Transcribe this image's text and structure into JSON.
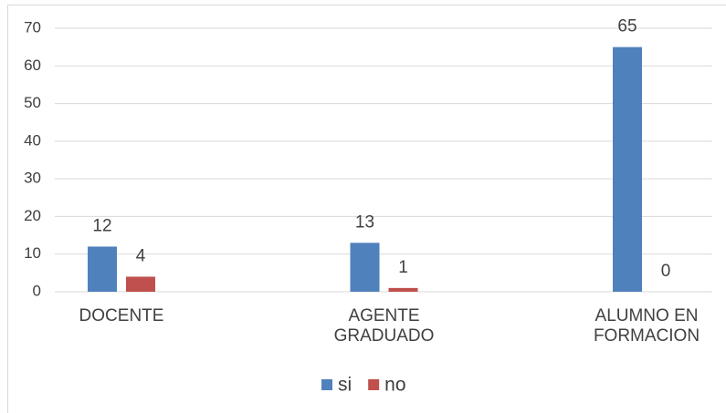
{
  "chart_data": {
    "type": "bar",
    "categories": [
      "DOCENTE",
      "AGENTE GRADUADO",
      "ALUMNO EN FORMACION"
    ],
    "series": [
      {
        "name": "si",
        "color": "#4f81bd",
        "values": [
          12,
          13,
          65
        ]
      },
      {
        "name": "no",
        "color": "#c0504d",
        "values": [
          4,
          1,
          0
        ]
      }
    ],
    "ylim": [
      0,
      70
    ],
    "yticks": [
      0,
      10,
      20,
      30,
      40,
      50,
      60,
      70
    ],
    "grid": true,
    "legend": "bottom"
  }
}
